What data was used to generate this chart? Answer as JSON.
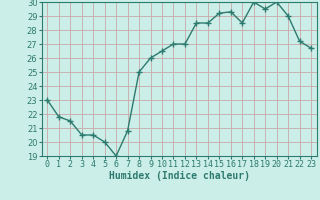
{
  "x": [
    0,
    1,
    2,
    3,
    4,
    5,
    6,
    7,
    8,
    9,
    10,
    11,
    12,
    13,
    14,
    15,
    16,
    17,
    18,
    19,
    20,
    21,
    22,
    23
  ],
  "y": [
    23.0,
    21.8,
    21.5,
    20.5,
    20.5,
    20.0,
    19.0,
    20.8,
    25.0,
    26.0,
    26.5,
    27.0,
    27.0,
    28.5,
    28.5,
    29.2,
    29.3,
    28.5,
    30.0,
    29.5,
    30.0,
    29.0,
    27.2,
    26.7
  ],
  "line_color": "#2d7a6e",
  "marker": "+",
  "marker_size": 4,
  "bg_color": "#cceee8",
  "grid_color": "#c8a8a8",
  "xlabel": "Humidex (Indice chaleur)",
  "xlabel_fontsize": 7,
  "ylim_min": 19,
  "ylim_max": 30,
  "yticks": [
    19,
    20,
    21,
    22,
    23,
    24,
    25,
    26,
    27,
    28,
    29,
    30
  ],
  "xticks": [
    0,
    1,
    2,
    3,
    4,
    5,
    6,
    7,
    8,
    9,
    10,
    11,
    12,
    13,
    14,
    15,
    16,
    17,
    18,
    19,
    20,
    21,
    22,
    23
  ],
  "tick_fontsize": 6,
  "line_width": 1.0,
  "spine_color": "#2d7a6e"
}
